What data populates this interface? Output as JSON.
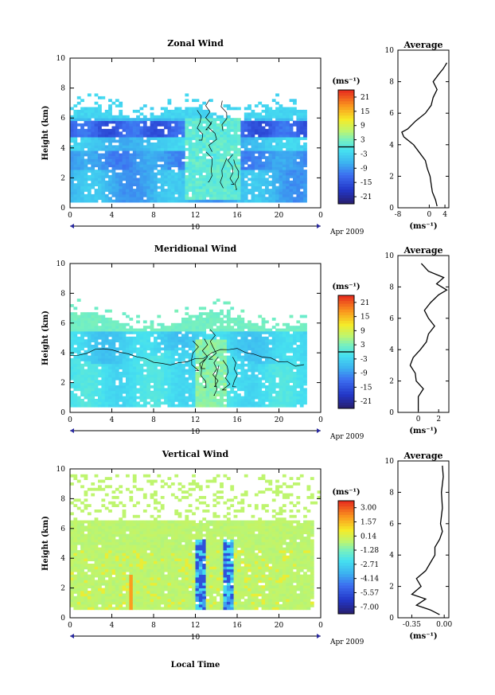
{
  "chart_data": [
    {
      "type": "heatmap",
      "title": "Zonal Wind",
      "xlabel": "",
      "ylabel": "Height (km)",
      "xlim": [
        0,
        24
      ],
      "ylim": [
        0,
        10
      ],
      "x_ticks": [
        "0",
        "4",
        "8",
        "12",
        "16",
        "20",
        "0"
      ],
      "y_ticks": [
        "0",
        "2",
        "4",
        "6",
        "8",
        "10"
      ],
      "date_marker": "10",
      "date_suffix": "Apr 2009",
      "colorbar": {
        "unit": "(ms⁻¹)",
        "ticks": [
          "21",
          "15",
          "9",
          "3",
          "-3",
          "-9",
          "-15",
          "-21"
        ],
        "min": -24,
        "max": 24
      },
      "profile": {
        "title": "Average",
        "xlabel": "(ms⁻¹)",
        "x_ticks": [
          "-8",
          "0",
          "4"
        ],
        "xlim": [
          -8,
          5
        ],
        "ylim": [
          0,
          10
        ],
        "y_ticks": [
          "0",
          "2",
          "4",
          "6",
          "8",
          "10"
        ],
        "points": [
          [
            2.0,
            0.1
          ],
          [
            1.6,
            0.5
          ],
          [
            0.8,
            1.0
          ],
          [
            0.5,
            1.5
          ],
          [
            0.2,
            2.0
          ],
          [
            -0.5,
            2.5
          ],
          [
            -1.0,
            3.0
          ],
          [
            -2.5,
            3.5
          ],
          [
            -4.0,
            4.0
          ],
          [
            -6.5,
            4.5
          ],
          [
            -7.0,
            4.8
          ],
          [
            -5.5,
            5.0
          ],
          [
            -3.5,
            5.5
          ],
          [
            -1.0,
            6.0
          ],
          [
            0.5,
            6.5
          ],
          [
            1.0,
            7.0
          ],
          [
            2.0,
            7.5
          ],
          [
            1.0,
            8.0
          ],
          [
            2.5,
            8.5
          ],
          [
            3.5,
            8.8
          ],
          [
            4.0,
            9.0
          ],
          [
            4.5,
            9.2
          ]
        ]
      }
    },
    {
      "type": "heatmap",
      "title": "Meridional Wind",
      "xlabel": "",
      "ylabel": "Height (km)",
      "xlim": [
        0,
        24
      ],
      "ylim": [
        0,
        10
      ],
      "x_ticks": [
        "0",
        "4",
        "8",
        "12",
        "16",
        "20",
        "0"
      ],
      "y_ticks": [
        "0",
        "2",
        "4",
        "6",
        "8",
        "10"
      ],
      "date_marker": "10",
      "date_suffix": "Apr 2009",
      "colorbar": {
        "unit": "(ms⁻¹)",
        "ticks": [
          "21",
          "15",
          "9",
          "3",
          "-3",
          "-9",
          "-15",
          "-21"
        ],
        "min": -24,
        "max": 24
      },
      "profile": {
        "title": "Average",
        "xlabel": "(ms⁻¹)",
        "x_ticks": [
          "0",
          "2"
        ],
        "xlim": [
          -2,
          3
        ],
        "ylim": [
          0,
          10
        ],
        "y_ticks": [
          "0",
          "2",
          "4",
          "6",
          "8",
          "10"
        ],
        "points": [
          [
            0.0,
            0.1
          ],
          [
            0.0,
            1.0
          ],
          [
            0.5,
            1.5
          ],
          [
            -0.2,
            2.0
          ],
          [
            -0.3,
            2.5
          ],
          [
            -0.8,
            3.0
          ],
          [
            -0.5,
            3.5
          ],
          [
            0.2,
            4.0
          ],
          [
            0.8,
            4.5
          ],
          [
            1.0,
            5.0
          ],
          [
            1.6,
            5.5
          ],
          [
            1.0,
            6.0
          ],
          [
            0.6,
            6.5
          ],
          [
            1.2,
            7.0
          ],
          [
            2.0,
            7.5
          ],
          [
            2.8,
            7.8
          ],
          [
            1.8,
            8.2
          ],
          [
            2.5,
            8.6
          ],
          [
            1.0,
            9.0
          ],
          [
            0.3,
            9.5
          ]
        ]
      }
    },
    {
      "type": "heatmap",
      "title": "Vertical Wind",
      "xlabel": "Local Time",
      "ylabel": "Height (km)",
      "xlim": [
        0,
        24
      ],
      "ylim": [
        0,
        10
      ],
      "x_ticks": [
        "0",
        "4",
        "8",
        "12",
        "16",
        "20",
        "0"
      ],
      "y_ticks": [
        "0",
        "2",
        "4",
        "6",
        "8",
        "10"
      ],
      "date_marker": "10",
      "date_suffix": "Apr 2009",
      "colorbar": {
        "unit": "(ms⁻¹)",
        "ticks": [
          "3.00",
          "1.57",
          "0.14",
          "-1.28",
          "-2.71",
          "-4.14",
          "-5.57",
          "-7.00"
        ],
        "min": -7.7,
        "max": 3.7
      },
      "profile": {
        "title": "Average",
        "xlabel": "(ms⁻¹)",
        "x_ticks": [
          "-0.35",
          "0.00"
        ],
        "xlim": [
          -0.5,
          0.05
        ],
        "ylim": [
          0,
          10
        ],
        "y_ticks": [
          "0",
          "2",
          "4",
          "6",
          "8",
          "10"
        ],
        "points": [
          [
            -0.05,
            0.2
          ],
          [
            -0.15,
            0.5
          ],
          [
            -0.3,
            0.8
          ],
          [
            -0.2,
            1.2
          ],
          [
            -0.35,
            1.5
          ],
          [
            -0.25,
            2.0
          ],
          [
            -0.3,
            2.5
          ],
          [
            -0.2,
            3.0
          ],
          [
            -0.15,
            3.5
          ],
          [
            -0.1,
            4.0
          ],
          [
            -0.1,
            4.5
          ],
          [
            -0.05,
            5.0
          ],
          [
            -0.02,
            5.5
          ],
          [
            -0.04,
            6.0
          ],
          [
            -0.02,
            7.0
          ],
          [
            -0.03,
            8.0
          ],
          [
            -0.01,
            9.0
          ],
          [
            -0.02,
            9.7
          ]
        ]
      }
    }
  ]
}
